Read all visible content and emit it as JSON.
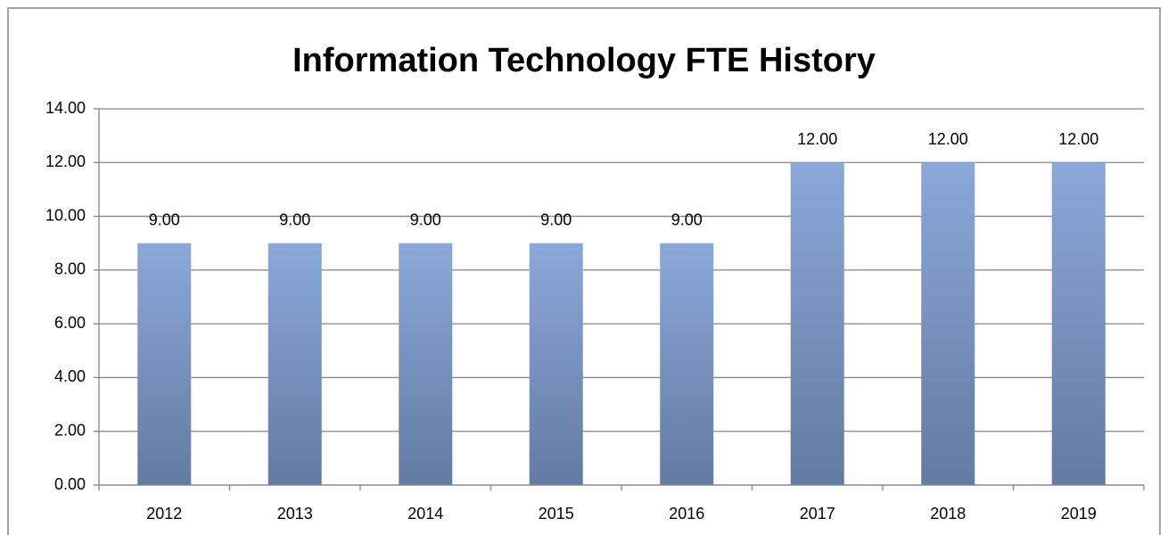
{
  "chart_data": {
    "type": "bar",
    "title": "Information Technology FTE History",
    "categories": [
      "2012",
      "2013",
      "2014",
      "2015",
      "2016",
      "2017",
      "2018",
      "2019"
    ],
    "values": [
      9,
      9,
      9,
      9,
      9,
      12,
      12,
      12
    ],
    "value_labels": [
      "9.00",
      "9.00",
      "9.00",
      "9.00",
      "9.00",
      "12.00",
      "12.00",
      "12.00"
    ],
    "color": "#8ba8da",
    "gradient_color": "#637ba2",
    "ylim": [
      0,
      14
    ],
    "yticks": [
      {
        "value": 0,
        "label": "0.00"
      },
      {
        "value": 2,
        "label": "2.00"
      },
      {
        "value": 4,
        "label": "4.00"
      },
      {
        "value": 6,
        "label": "6.00"
      },
      {
        "value": 8,
        "label": "8.00"
      },
      {
        "value": 10,
        "label": "10.00"
      },
      {
        "value": 12,
        "label": "12.00"
      },
      {
        "value": 14,
        "label": "14.00"
      }
    ],
    "grid": true
  }
}
